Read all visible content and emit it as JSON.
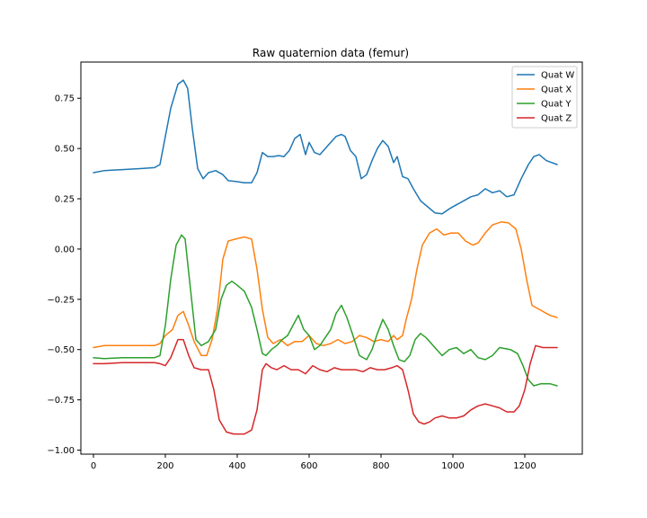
{
  "chart_data": {
    "type": "line",
    "title": "Raw quaternion data (femur)",
    "xlabel": "",
    "ylabel": "",
    "xlim": [
      -35,
      1360
    ],
    "ylim": [
      -1.02,
      0.93
    ],
    "xticks": [
      0,
      200,
      400,
      600,
      800,
      1000,
      1200
    ],
    "yticks": [
      -1.0,
      -0.75,
      -0.5,
      -0.25,
      0.0,
      0.25,
      0.5,
      0.75
    ],
    "ytick_labels": [
      "−1.00",
      "−0.75",
      "−0.50",
      "−0.25",
      "0.00",
      "0.25",
      "0.50",
      "0.75"
    ],
    "grid": false,
    "legend_position": "top-right",
    "series": [
      {
        "name": "Quat W",
        "color": "#1f77b4",
        "points": [
          [
            0,
            0.38
          ],
          [
            30,
            0.39
          ],
          [
            80,
            0.395
          ],
          [
            130,
            0.4
          ],
          [
            170,
            0.405
          ],
          [
            185,
            0.42
          ],
          [
            200,
            0.56
          ],
          [
            215,
            0.7
          ],
          [
            235,
            0.82
          ],
          [
            250,
            0.84
          ],
          [
            262,
            0.8
          ],
          [
            275,
            0.6
          ],
          [
            290,
            0.4
          ],
          [
            305,
            0.35
          ],
          [
            320,
            0.38
          ],
          [
            340,
            0.39
          ],
          [
            360,
            0.37
          ],
          [
            375,
            0.34
          ],
          [
            400,
            0.335
          ],
          [
            420,
            0.33
          ],
          [
            440,
            0.33
          ],
          [
            455,
            0.38
          ],
          [
            470,
            0.48
          ],
          [
            485,
            0.46
          ],
          [
            500,
            0.46
          ],
          [
            515,
            0.465
          ],
          [
            530,
            0.46
          ],
          [
            545,
            0.49
          ],
          [
            560,
            0.55
          ],
          [
            575,
            0.57
          ],
          [
            590,
            0.47
          ],
          [
            600,
            0.53
          ],
          [
            615,
            0.48
          ],
          [
            630,
            0.47
          ],
          [
            645,
            0.5
          ],
          [
            660,
            0.53
          ],
          [
            675,
            0.56
          ],
          [
            690,
            0.57
          ],
          [
            700,
            0.56
          ],
          [
            715,
            0.49
          ],
          [
            730,
            0.46
          ],
          [
            745,
            0.35
          ],
          [
            760,
            0.37
          ],
          [
            775,
            0.44
          ],
          [
            790,
            0.5
          ],
          [
            805,
            0.54
          ],
          [
            820,
            0.51
          ],
          [
            835,
            0.43
          ],
          [
            845,
            0.46
          ],
          [
            860,
            0.36
          ],
          [
            875,
            0.35
          ],
          [
            890,
            0.3
          ],
          [
            910,
            0.24
          ],
          [
            930,
            0.21
          ],
          [
            950,
            0.18
          ],
          [
            970,
            0.175
          ],
          [
            990,
            0.2
          ],
          [
            1010,
            0.22
          ],
          [
            1030,
            0.24
          ],
          [
            1050,
            0.26
          ],
          [
            1070,
            0.27
          ],
          [
            1090,
            0.3
          ],
          [
            1110,
            0.28
          ],
          [
            1130,
            0.29
          ],
          [
            1150,
            0.26
          ],
          [
            1170,
            0.27
          ],
          [
            1190,
            0.35
          ],
          [
            1210,
            0.42
          ],
          [
            1225,
            0.46
          ],
          [
            1240,
            0.47
          ],
          [
            1260,
            0.44
          ],
          [
            1290,
            0.42
          ]
        ]
      },
      {
        "name": "Quat X",
        "color": "#ff7f0e",
        "points": [
          [
            0,
            -0.49
          ],
          [
            30,
            -0.48
          ],
          [
            80,
            -0.48
          ],
          [
            130,
            -0.48
          ],
          [
            170,
            -0.48
          ],
          [
            185,
            -0.47
          ],
          [
            200,
            -0.43
          ],
          [
            220,
            -0.4
          ],
          [
            235,
            -0.33
          ],
          [
            250,
            -0.31
          ],
          [
            265,
            -0.38
          ],
          [
            280,
            -0.46
          ],
          [
            300,
            -0.53
          ],
          [
            315,
            -0.53
          ],
          [
            330,
            -0.45
          ],
          [
            345,
            -0.3
          ],
          [
            360,
            -0.05
          ],
          [
            375,
            0.04
          ],
          [
            395,
            0.05
          ],
          [
            420,
            0.06
          ],
          [
            440,
            0.05
          ],
          [
            455,
            -0.1
          ],
          [
            470,
            -0.3
          ],
          [
            485,
            -0.44
          ],
          [
            500,
            -0.47
          ],
          [
            520,
            -0.45
          ],
          [
            540,
            -0.48
          ],
          [
            560,
            -0.46
          ],
          [
            580,
            -0.46
          ],
          [
            600,
            -0.43
          ],
          [
            620,
            -0.47
          ],
          [
            640,
            -0.48
          ],
          [
            660,
            -0.47
          ],
          [
            680,
            -0.45
          ],
          [
            700,
            -0.47
          ],
          [
            720,
            -0.46
          ],
          [
            740,
            -0.43
          ],
          [
            760,
            -0.44
          ],
          [
            780,
            -0.46
          ],
          [
            800,
            -0.45
          ],
          [
            820,
            -0.46
          ],
          [
            835,
            -0.43
          ],
          [
            845,
            -0.45
          ],
          [
            860,
            -0.43
          ],
          [
            870,
            -0.35
          ],
          [
            885,
            -0.25
          ],
          [
            900,
            -0.1
          ],
          [
            915,
            0.02
          ],
          [
            935,
            0.08
          ],
          [
            955,
            0.1
          ],
          [
            975,
            0.07
          ],
          [
            995,
            0.08
          ],
          [
            1015,
            0.08
          ],
          [
            1035,
            0.04
          ],
          [
            1055,
            0.02
          ],
          [
            1070,
            0.03
          ],
          [
            1090,
            0.08
          ],
          [
            1110,
            0.12
          ],
          [
            1135,
            0.135
          ],
          [
            1155,
            0.13
          ],
          [
            1175,
            0.1
          ],
          [
            1190,
            0.0
          ],
          [
            1205,
            -0.15
          ],
          [
            1220,
            -0.28
          ],
          [
            1240,
            -0.3
          ],
          [
            1270,
            -0.33
          ],
          [
            1290,
            -0.34
          ]
        ]
      },
      {
        "name": "Quat Y",
        "color": "#2ca02c",
        "points": [
          [
            0,
            -0.54
          ],
          [
            30,
            -0.545
          ],
          [
            80,
            -0.54
          ],
          [
            130,
            -0.54
          ],
          [
            170,
            -0.54
          ],
          [
            185,
            -0.53
          ],
          [
            200,
            -0.38
          ],
          [
            215,
            -0.15
          ],
          [
            230,
            0.02
          ],
          [
            245,
            0.07
          ],
          [
            255,
            0.05
          ],
          [
            270,
            -0.2
          ],
          [
            285,
            -0.45
          ],
          [
            300,
            -0.48
          ],
          [
            320,
            -0.46
          ],
          [
            340,
            -0.4
          ],
          [
            355,
            -0.25
          ],
          [
            370,
            -0.18
          ],
          [
            385,
            -0.16
          ],
          [
            400,
            -0.18
          ],
          [
            420,
            -0.21
          ],
          [
            440,
            -0.29
          ],
          [
            455,
            -0.4
          ],
          [
            470,
            -0.52
          ],
          [
            480,
            -0.53
          ],
          [
            495,
            -0.5
          ],
          [
            510,
            -0.48
          ],
          [
            525,
            -0.45
          ],
          [
            540,
            -0.43
          ],
          [
            555,
            -0.38
          ],
          [
            570,
            -0.33
          ],
          [
            585,
            -0.4
          ],
          [
            600,
            -0.43
          ],
          [
            615,
            -0.5
          ],
          [
            630,
            -0.48
          ],
          [
            645,
            -0.44
          ],
          [
            660,
            -0.4
          ],
          [
            675,
            -0.32
          ],
          [
            690,
            -0.28
          ],
          [
            705,
            -0.34
          ],
          [
            720,
            -0.42
          ],
          [
            740,
            -0.53
          ],
          [
            760,
            -0.55
          ],
          [
            775,
            -0.5
          ],
          [
            790,
            -0.42
          ],
          [
            805,
            -0.35
          ],
          [
            820,
            -0.4
          ],
          [
            835,
            -0.48
          ],
          [
            850,
            -0.55
          ],
          [
            865,
            -0.56
          ],
          [
            880,
            -0.53
          ],
          [
            895,
            -0.45
          ],
          [
            910,
            -0.42
          ],
          [
            925,
            -0.44
          ],
          [
            940,
            -0.47
          ],
          [
            955,
            -0.5
          ],
          [
            970,
            -0.53
          ],
          [
            990,
            -0.5
          ],
          [
            1010,
            -0.49
          ],
          [
            1030,
            -0.52
          ],
          [
            1050,
            -0.5
          ],
          [
            1070,
            -0.54
          ],
          [
            1090,
            -0.55
          ],
          [
            1110,
            -0.53
          ],
          [
            1130,
            -0.49
          ],
          [
            1160,
            -0.5
          ],
          [
            1180,
            -0.52
          ],
          [
            1195,
            -0.58
          ],
          [
            1210,
            -0.65
          ],
          [
            1225,
            -0.68
          ],
          [
            1245,
            -0.67
          ],
          [
            1270,
            -0.67
          ],
          [
            1290,
            -0.68
          ]
        ]
      },
      {
        "name": "Quat Z",
        "color": "#d62728",
        "points": [
          [
            0,
            -0.57
          ],
          [
            30,
            -0.57
          ],
          [
            80,
            -0.565
          ],
          [
            130,
            -0.565
          ],
          [
            170,
            -0.565
          ],
          [
            185,
            -0.57
          ],
          [
            200,
            -0.58
          ],
          [
            215,
            -0.54
          ],
          [
            235,
            -0.45
          ],
          [
            250,
            -0.45
          ],
          [
            265,
            -0.53
          ],
          [
            280,
            -0.59
          ],
          [
            300,
            -0.6
          ],
          [
            320,
            -0.6
          ],
          [
            335,
            -0.7
          ],
          [
            350,
            -0.85
          ],
          [
            370,
            -0.91
          ],
          [
            390,
            -0.92
          ],
          [
            420,
            -0.92
          ],
          [
            440,
            -0.9
          ],
          [
            455,
            -0.8
          ],
          [
            470,
            -0.6
          ],
          [
            480,
            -0.57
          ],
          [
            495,
            -0.59
          ],
          [
            510,
            -0.6
          ],
          [
            530,
            -0.58
          ],
          [
            550,
            -0.6
          ],
          [
            570,
            -0.6
          ],
          [
            590,
            -0.62
          ],
          [
            610,
            -0.58
          ],
          [
            630,
            -0.6
          ],
          [
            650,
            -0.61
          ],
          [
            670,
            -0.59
          ],
          [
            690,
            -0.6
          ],
          [
            710,
            -0.6
          ],
          [
            730,
            -0.6
          ],
          [
            750,
            -0.61
          ],
          [
            770,
            -0.59
          ],
          [
            790,
            -0.6
          ],
          [
            810,
            -0.6
          ],
          [
            830,
            -0.59
          ],
          [
            845,
            -0.58
          ],
          [
            860,
            -0.6
          ],
          [
            875,
            -0.7
          ],
          [
            890,
            -0.82
          ],
          [
            905,
            -0.86
          ],
          [
            920,
            -0.87
          ],
          [
            935,
            -0.86
          ],
          [
            950,
            -0.84
          ],
          [
            970,
            -0.83
          ],
          [
            990,
            -0.84
          ],
          [
            1010,
            -0.84
          ],
          [
            1030,
            -0.83
          ],
          [
            1050,
            -0.8
          ],
          [
            1070,
            -0.78
          ],
          [
            1090,
            -0.77
          ],
          [
            1110,
            -0.78
          ],
          [
            1130,
            -0.79
          ],
          [
            1150,
            -0.81
          ],
          [
            1170,
            -0.81
          ],
          [
            1185,
            -0.78
          ],
          [
            1200,
            -0.7
          ],
          [
            1215,
            -0.57
          ],
          [
            1230,
            -0.48
          ],
          [
            1250,
            -0.49
          ],
          [
            1270,
            -0.49
          ],
          [
            1290,
            -0.49
          ]
        ]
      }
    ]
  }
}
